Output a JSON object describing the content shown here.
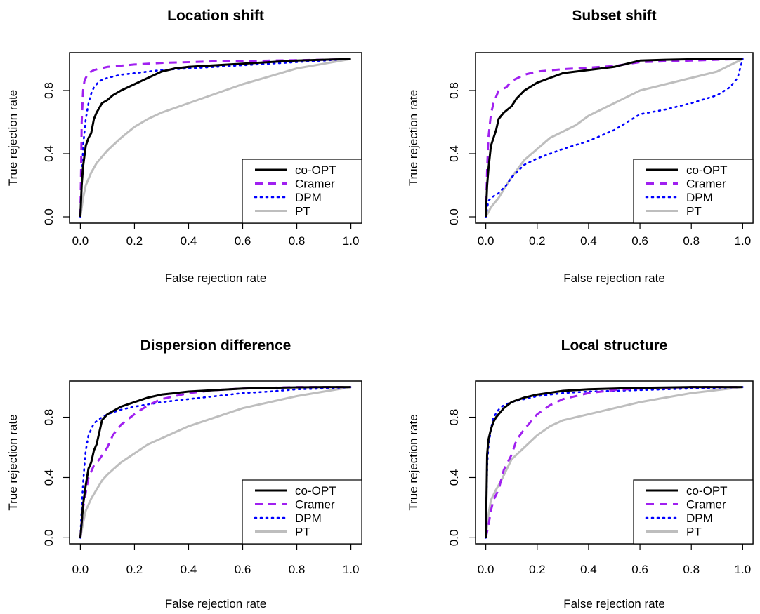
{
  "series_styles": {
    "co-OPT": {
      "color": "#000000",
      "dash": "",
      "width": 3
    },
    "Cramer": {
      "color": "#a020f0",
      "dash": "11 8",
      "width": 3
    },
    "DPM": {
      "color": "#0000ff",
      "dash": "2 6",
      "width": 2.6
    },
    "PT": {
      "color": "#bebebe",
      "dash": "",
      "width": 3
    }
  },
  "chart_data": [
    {
      "type": "line",
      "title": "Location shift",
      "xlabel": "False rejection rate",
      "ylabel": "True rejection rate",
      "xlim": [
        0,
        1
      ],
      "ylim": [
        0,
        1
      ],
      "xticks": [
        "0.0",
        "0.2",
        "0.4",
        "0.6",
        "0.8",
        "1.0"
      ],
      "yticks": [
        "0.0",
        "0.4",
        "0.8"
      ],
      "legend_position": "bottom-right",
      "series": [
        {
          "name": "co-OPT",
          "x": [
            0,
            0.005,
            0.01,
            0.02,
            0.03,
            0.04,
            0.05,
            0.06,
            0.07,
            0.08,
            0.1,
            0.12,
            0.15,
            0.2,
            0.25,
            0.3,
            0.35,
            0.4,
            0.45,
            0.5,
            0.6,
            0.7,
            0.8,
            0.9,
            1.0
          ],
          "y": [
            0,
            0.2,
            0.32,
            0.45,
            0.5,
            0.53,
            0.62,
            0.66,
            0.69,
            0.72,
            0.74,
            0.77,
            0.8,
            0.84,
            0.88,
            0.92,
            0.94,
            0.95,
            0.955,
            0.96,
            0.97,
            0.98,
            0.99,
            0.995,
            1.0
          ]
        },
        {
          "name": "Cramer",
          "x": [
            0,
            0.003,
            0.005,
            0.008,
            0.01,
            0.015,
            0.02,
            0.03,
            0.05,
            0.1,
            0.2,
            0.3,
            0.5,
            0.7,
            0.9,
            1.0
          ],
          "y": [
            0,
            0.35,
            0.6,
            0.72,
            0.8,
            0.86,
            0.88,
            0.91,
            0.93,
            0.95,
            0.965,
            0.975,
            0.985,
            0.99,
            0.995,
            1.0
          ]
        },
        {
          "name": "DPM",
          "x": [
            0,
            0.005,
            0.01,
            0.02,
            0.03,
            0.04,
            0.05,
            0.07,
            0.1,
            0.15,
            0.2,
            0.3,
            0.4,
            0.5,
            0.6,
            0.7,
            0.8,
            0.9,
            1.0
          ],
          "y": [
            0,
            0.2,
            0.45,
            0.62,
            0.72,
            0.78,
            0.82,
            0.86,
            0.88,
            0.9,
            0.91,
            0.93,
            0.94,
            0.95,
            0.96,
            0.97,
            0.98,
            0.99,
            1.0
          ]
        },
        {
          "name": "PT",
          "x": [
            0,
            0.01,
            0.02,
            0.04,
            0.06,
            0.08,
            0.1,
            0.15,
            0.2,
            0.25,
            0.3,
            0.4,
            0.5,
            0.6,
            0.7,
            0.8,
            0.9,
            1.0
          ],
          "y": [
            0,
            0.12,
            0.2,
            0.28,
            0.34,
            0.38,
            0.42,
            0.5,
            0.57,
            0.62,
            0.66,
            0.72,
            0.78,
            0.84,
            0.89,
            0.94,
            0.97,
            1.0
          ]
        }
      ]
    },
    {
      "type": "line",
      "title": "Subset shift",
      "xlabel": "False rejection rate",
      "ylabel": "True rejection rate",
      "xlim": [
        0,
        1
      ],
      "ylim": [
        0,
        1
      ],
      "xticks": [
        "0.0",
        "0.2",
        "0.4",
        "0.6",
        "0.8",
        "1.0"
      ],
      "yticks": [
        "0.0",
        "0.4",
        "0.8"
      ],
      "legend_position": "bottom-right",
      "series": [
        {
          "name": "co-OPT",
          "x": [
            0,
            0.005,
            0.01,
            0.02,
            0.03,
            0.04,
            0.05,
            0.07,
            0.1,
            0.12,
            0.15,
            0.2,
            0.25,
            0.3,
            0.4,
            0.5,
            0.55,
            0.6,
            0.7,
            0.8,
            0.9,
            1.0
          ],
          "y": [
            0,
            0.2,
            0.3,
            0.45,
            0.5,
            0.55,
            0.62,
            0.66,
            0.7,
            0.75,
            0.8,
            0.85,
            0.88,
            0.91,
            0.93,
            0.95,
            0.97,
            0.99,
            0.995,
            0.998,
            1.0,
            1.0
          ]
        },
        {
          "name": "Cramer",
          "x": [
            0,
            0.005,
            0.01,
            0.02,
            0.03,
            0.05,
            0.08,
            0.1,
            0.15,
            0.2,
            0.3,
            0.4,
            0.5,
            0.6,
            0.8,
            1.0
          ],
          "y": [
            0,
            0.3,
            0.5,
            0.65,
            0.72,
            0.8,
            0.82,
            0.86,
            0.9,
            0.92,
            0.935,
            0.945,
            0.955,
            0.98,
            0.99,
            1.0
          ]
        },
        {
          "name": "DPM",
          "x": [
            0,
            0.01,
            0.02,
            0.05,
            0.08,
            0.1,
            0.15,
            0.2,
            0.3,
            0.4,
            0.5,
            0.6,
            0.7,
            0.8,
            0.9,
            0.95,
            0.98,
            1.0
          ],
          "y": [
            0,
            0.1,
            0.12,
            0.15,
            0.2,
            0.25,
            0.33,
            0.37,
            0.43,
            0.48,
            0.55,
            0.65,
            0.68,
            0.72,
            0.77,
            0.82,
            0.88,
            1.0
          ]
        },
        {
          "name": "PT",
          "x": [
            0,
            0.02,
            0.05,
            0.08,
            0.1,
            0.15,
            0.2,
            0.25,
            0.3,
            0.35,
            0.4,
            0.5,
            0.6,
            0.7,
            0.8,
            0.9,
            0.95,
            1.0
          ],
          "y": [
            0,
            0.06,
            0.12,
            0.2,
            0.25,
            0.36,
            0.43,
            0.5,
            0.54,
            0.58,
            0.64,
            0.72,
            0.8,
            0.84,
            0.88,
            0.92,
            0.96,
            1.0
          ]
        }
      ]
    },
    {
      "type": "line",
      "title": "Dispersion difference",
      "xlabel": "False rejection rate",
      "ylabel": "True rejection rate",
      "xlim": [
        0,
        1
      ],
      "ylim": [
        0,
        1
      ],
      "xticks": [
        "0.0",
        "0.2",
        "0.4",
        "0.6",
        "0.8",
        "1.0"
      ],
      "yticks": [
        "0.0",
        "0.4",
        "0.8"
      ],
      "legend_position": "bottom-right",
      "series": [
        {
          "name": "co-OPT",
          "x": [
            0,
            0.005,
            0.01,
            0.02,
            0.03,
            0.04,
            0.05,
            0.06,
            0.07,
            0.08,
            0.1,
            0.12,
            0.15,
            0.2,
            0.25,
            0.3,
            0.35,
            0.4,
            0.5,
            0.6,
            0.7,
            0.8,
            0.9,
            1.0
          ],
          "y": [
            0,
            0.1,
            0.22,
            0.35,
            0.46,
            0.5,
            0.58,
            0.62,
            0.7,
            0.78,
            0.82,
            0.84,
            0.87,
            0.9,
            0.93,
            0.95,
            0.96,
            0.97,
            0.98,
            0.99,
            0.995,
            0.998,
            1.0,
            1.0
          ]
        },
        {
          "name": "Cramer",
          "x": [
            0,
            0.005,
            0.01,
            0.02,
            0.03,
            0.05,
            0.07,
            0.1,
            0.12,
            0.15,
            0.2,
            0.25,
            0.3,
            0.4,
            0.5,
            0.6,
            0.7,
            0.8,
            0.9,
            1.0
          ],
          "y": [
            0,
            0.1,
            0.2,
            0.3,
            0.4,
            0.48,
            0.52,
            0.6,
            0.68,
            0.75,
            0.82,
            0.88,
            0.92,
            0.96,
            0.98,
            0.99,
            0.995,
            1.0,
            1.0,
            1.0
          ]
        },
        {
          "name": "DPM",
          "x": [
            0,
            0.005,
            0.01,
            0.015,
            0.02,
            0.03,
            0.05,
            0.08,
            0.1,
            0.15,
            0.2,
            0.3,
            0.4,
            0.5,
            0.6,
            0.7,
            0.8,
            0.9,
            1.0
          ],
          "y": [
            0,
            0.2,
            0.36,
            0.48,
            0.58,
            0.68,
            0.76,
            0.8,
            0.82,
            0.85,
            0.87,
            0.9,
            0.92,
            0.94,
            0.96,
            0.97,
            0.985,
            0.99,
            1.0
          ]
        },
        {
          "name": "PT",
          "x": [
            0,
            0.01,
            0.02,
            0.04,
            0.06,
            0.08,
            0.1,
            0.15,
            0.2,
            0.25,
            0.3,
            0.4,
            0.5,
            0.6,
            0.7,
            0.8,
            0.9,
            1.0
          ],
          "y": [
            0,
            0.1,
            0.18,
            0.26,
            0.32,
            0.38,
            0.42,
            0.5,
            0.56,
            0.62,
            0.66,
            0.74,
            0.8,
            0.86,
            0.9,
            0.94,
            0.97,
            1.0
          ]
        }
      ]
    },
    {
      "type": "line",
      "title": "Local structure",
      "xlabel": "False rejection rate",
      "ylabel": "True rejection rate",
      "xlim": [
        0,
        1
      ],
      "ylim": [
        0,
        1
      ],
      "xticks": [
        "0.0",
        "0.2",
        "0.4",
        "0.6",
        "0.8",
        "1.0"
      ],
      "yticks": [
        "0.0",
        "0.4",
        "0.8"
      ],
      "legend_position": "bottom-right",
      "series": [
        {
          "name": "co-OPT",
          "x": [
            0,
            0.003,
            0.005,
            0.01,
            0.02,
            0.03,
            0.04,
            0.05,
            0.07,
            0.1,
            0.15,
            0.2,
            0.3,
            0.4,
            0.5,
            0.6,
            0.8,
            1.0
          ],
          "y": [
            0,
            0.3,
            0.55,
            0.65,
            0.72,
            0.77,
            0.8,
            0.82,
            0.86,
            0.9,
            0.93,
            0.95,
            0.975,
            0.985,
            0.99,
            0.995,
            1.0,
            1.0
          ]
        },
        {
          "name": "Cramer",
          "x": [
            0,
            0.01,
            0.02,
            0.03,
            0.05,
            0.07,
            0.1,
            0.12,
            0.15,
            0.2,
            0.25,
            0.3,
            0.4,
            0.5,
            0.6,
            0.8,
            1.0
          ],
          "y": [
            0,
            0.08,
            0.18,
            0.25,
            0.32,
            0.45,
            0.55,
            0.65,
            0.72,
            0.82,
            0.88,
            0.92,
            0.96,
            0.98,
            0.99,
            1.0,
            1.0
          ]
        },
        {
          "name": "DPM",
          "x": [
            0,
            0.003,
            0.006,
            0.01,
            0.015,
            0.02,
            0.03,
            0.05,
            0.07,
            0.1,
            0.15,
            0.2,
            0.3,
            0.4,
            0.6,
            0.8,
            1.0
          ],
          "y": [
            0,
            0.3,
            0.5,
            0.6,
            0.66,
            0.72,
            0.8,
            0.85,
            0.88,
            0.9,
            0.92,
            0.94,
            0.96,
            0.97,
            0.98,
            0.99,
            1.0
          ]
        },
        {
          "name": "PT",
          "x": [
            0,
            0.01,
            0.02,
            0.04,
            0.06,
            0.08,
            0.1,
            0.15,
            0.2,
            0.25,
            0.3,
            0.4,
            0.5,
            0.6,
            0.7,
            0.8,
            0.9,
            1.0
          ],
          "y": [
            0,
            0.15,
            0.25,
            0.32,
            0.38,
            0.45,
            0.52,
            0.6,
            0.68,
            0.74,
            0.78,
            0.82,
            0.86,
            0.9,
            0.93,
            0.96,
            0.98,
            1.0
          ]
        }
      ]
    }
  ]
}
